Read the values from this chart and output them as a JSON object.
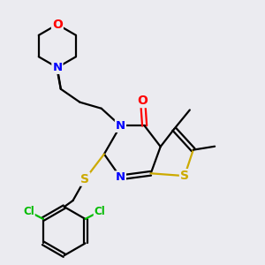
{
  "background_color": "#ebebf0",
  "atom_colors": {
    "C": "#000000",
    "N": "#0000ff",
    "O": "#ff0000",
    "S": "#ccaa00",
    "Cl": "#00bb00",
    "H": "#000000"
  },
  "bond_color": "#000000",
  "bond_width": 1.6,
  "font_size": 8.5,
  "fig_size": [
    3.0,
    3.0
  ],
  "dpi": 100
}
